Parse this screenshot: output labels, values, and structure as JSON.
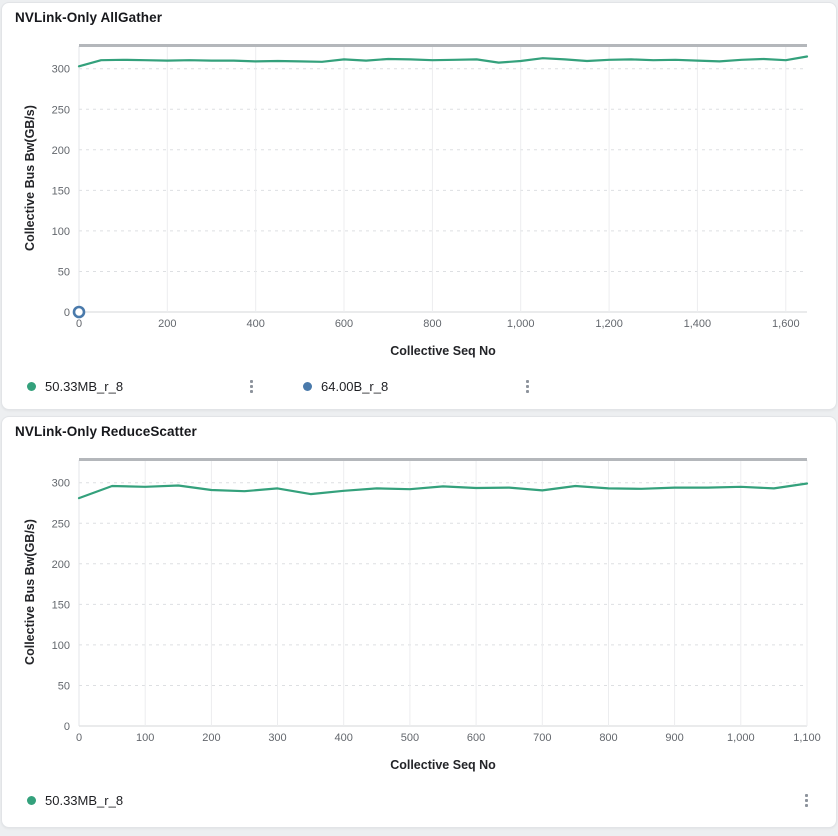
{
  "page": {
    "background": "#edeff1",
    "card_background": "#ffffff",
    "grid_dashed_color": "#dddfe2",
    "grid_vertical_color": "#ecedef",
    "plot_top_border_color": "#b4b7bb",
    "axis_zero_line_color": "#d5d7da"
  },
  "icons": {
    "kebab_menu": "vertical-ellipsis (3 dots)"
  },
  "chart_data": [
    {
      "type": "line",
      "title": "NVLink-Only AllGather",
      "x_label": "Collective Seq No",
      "y_label": "Collective Bus Bw(GB/s)",
      "x_ticks": [
        0,
        200,
        400,
        600,
        800,
        1000,
        1200,
        1400,
        1600
      ],
      "y_ticks": [
        0,
        50,
        100,
        150,
        200,
        250,
        300
      ],
      "x_max": 1648,
      "y_max": 328,
      "grid": "horizontal-dashed, vertical-solid",
      "legend_position": "bottom-left",
      "series": [
        {
          "name": "50.33MB_r_8",
          "color": "#34a17c",
          "type": "line",
          "x": [
            0,
            50,
            100,
            150,
            200,
            250,
            300,
            350,
            400,
            450,
            500,
            550,
            600,
            650,
            700,
            750,
            800,
            850,
            900,
            950,
            1000,
            1050,
            1100,
            1150,
            1200,
            1250,
            1300,
            1350,
            1400,
            1450,
            1500,
            1550,
            1600,
            1648
          ],
          "y": [
            303,
            310.5,
            311,
            310.5,
            310,
            310.5,
            310,
            310,
            309,
            309.5,
            309,
            308.5,
            311.5,
            310,
            312,
            311.5,
            310.5,
            311,
            311.5,
            307.5,
            309.5,
            313,
            311.5,
            309.5,
            311,
            311.5,
            310.5,
            311,
            310,
            309,
            311,
            312,
            310.5,
            315
          ]
        },
        {
          "name": "64.00B_r_8",
          "color": "#4a7aab",
          "type": "scatter",
          "x": [
            0
          ],
          "y": [
            0
          ]
        }
      ]
    },
    {
      "type": "line",
      "title": "NVLink-Only ReduceScatter",
      "x_label": "Collective Seq No",
      "y_label": "Collective Bus Bw(GB/s)",
      "x_ticks": [
        0,
        100,
        200,
        300,
        400,
        500,
        600,
        700,
        800,
        900,
        1000,
        1100
      ],
      "y_ticks": [
        0,
        50,
        100,
        150,
        200,
        250,
        300
      ],
      "x_max": 1100,
      "y_max": 328,
      "grid": "horizontal-dashed, vertical-solid",
      "legend_position": "bottom-left",
      "series": [
        {
          "name": "50.33MB_r_8",
          "color": "#34a17c",
          "type": "line",
          "x": [
            0,
            50,
            100,
            150,
            200,
            250,
            300,
            350,
            400,
            450,
            500,
            550,
            600,
            650,
            700,
            750,
            800,
            850,
            900,
            950,
            1000,
            1050,
            1100
          ],
          "y": [
            281,
            296,
            295,
            296.5,
            291,
            289.5,
            293,
            286,
            290,
            293,
            292,
            295.5,
            293.5,
            294,
            290.5,
            296,
            293,
            292.5,
            294,
            294,
            295,
            293,
            299
          ]
        }
      ]
    }
  ]
}
